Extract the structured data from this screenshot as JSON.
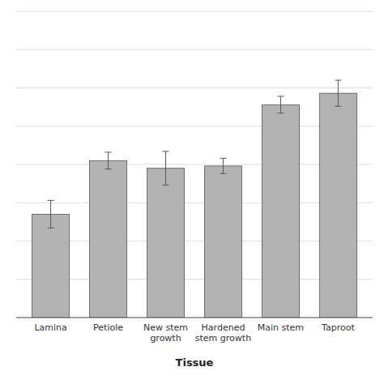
{
  "chart_data": {
    "type": "bar",
    "categories": [
      "Lamina",
      "Petiole",
      "New stem\ngrowth",
      "Hardened\nstem growth",
      "Main stem",
      "Taproot"
    ],
    "values": [
      1.35,
      2.05,
      1.95,
      1.98,
      2.78,
      2.93
    ],
    "errors": [
      0.18,
      0.11,
      0.22,
      0.1,
      0.11,
      0.17
    ],
    "color": "#b3b3b3",
    "xlabel": "Tissue",
    "ylim": [
      0,
      4.0
    ],
    "yticks": [
      0.0,
      0.5,
      1.0,
      1.5,
      2.0,
      2.5,
      3.0,
      3.5,
      4.0
    ],
    "grid": true,
    "tick_labels": "x"
  }
}
